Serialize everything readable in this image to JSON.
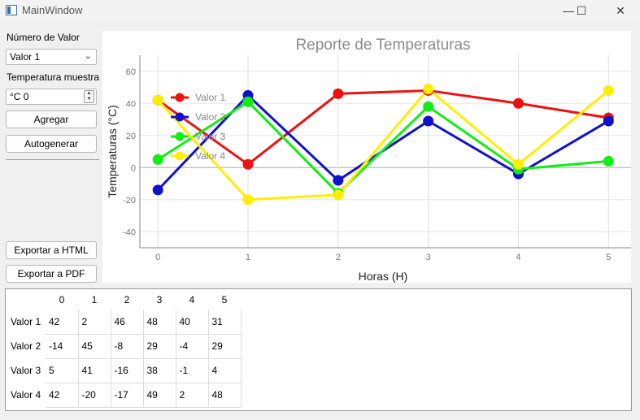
{
  "window": {
    "title": "MainWindow",
    "controls": {
      "minimize": "—",
      "maximize": "☐",
      "close": "✕"
    }
  },
  "form": {
    "serie_label": "Número de Valor",
    "serie_selected": "Valor 1",
    "temp_label": "Temperatura muestra",
    "temp_value": "°C 0",
    "add_button": "Agregar",
    "auto_button": "Autogenerar",
    "export_html_button": "Exportar a HTML",
    "export_pdf_button": "Exportar a PDF"
  },
  "chart_data": {
    "type": "line",
    "title": "Reporte de Temperaturas",
    "xlabel": "Horas (H)",
    "ylabel": "Temperaturas (°C)",
    "x": [
      0,
      1,
      2,
      3,
      4,
      5
    ],
    "xlim": [
      -0.2,
      5.25
    ],
    "ylim": [
      -50,
      70
    ],
    "yticks": [
      -40,
      -20,
      0,
      20,
      40,
      60
    ],
    "grid": true,
    "legend_position": "top-left",
    "series": [
      {
        "name": "Valor 1",
        "color": "#ee1111",
        "values": [
          42,
          2,
          46,
          48,
          40,
          31
        ]
      },
      {
        "name": "Valor 2",
        "color": "#1111cc",
        "values": [
          -14,
          45,
          -8,
          29,
          -4,
          29
        ]
      },
      {
        "name": "Valor 3",
        "color": "#11ee11",
        "values": [
          5,
          41,
          -16,
          38,
          -1,
          4
        ]
      },
      {
        "name": "Valor 4",
        "color": "#ffee00",
        "values": [
          42,
          -20,
          -17,
          49,
          2,
          48
        ]
      }
    ]
  },
  "table": {
    "columns": [
      "0",
      "1",
      "2",
      "3",
      "4",
      "5"
    ],
    "rows": [
      {
        "label": "Valor 1",
        "cells": [
          "42",
          "2",
          "46",
          "48",
          "40",
          "31"
        ]
      },
      {
        "label": "Valor 2",
        "cells": [
          "-14",
          "45",
          "-8",
          "29",
          "-4",
          "29"
        ]
      },
      {
        "label": "Valor 3",
        "cells": [
          "5",
          "41",
          "-16",
          "38",
          "-1",
          "4"
        ]
      },
      {
        "label": "Valor 4",
        "cells": [
          "42",
          "-20",
          "-17",
          "49",
          "2",
          "48"
        ]
      }
    ]
  }
}
